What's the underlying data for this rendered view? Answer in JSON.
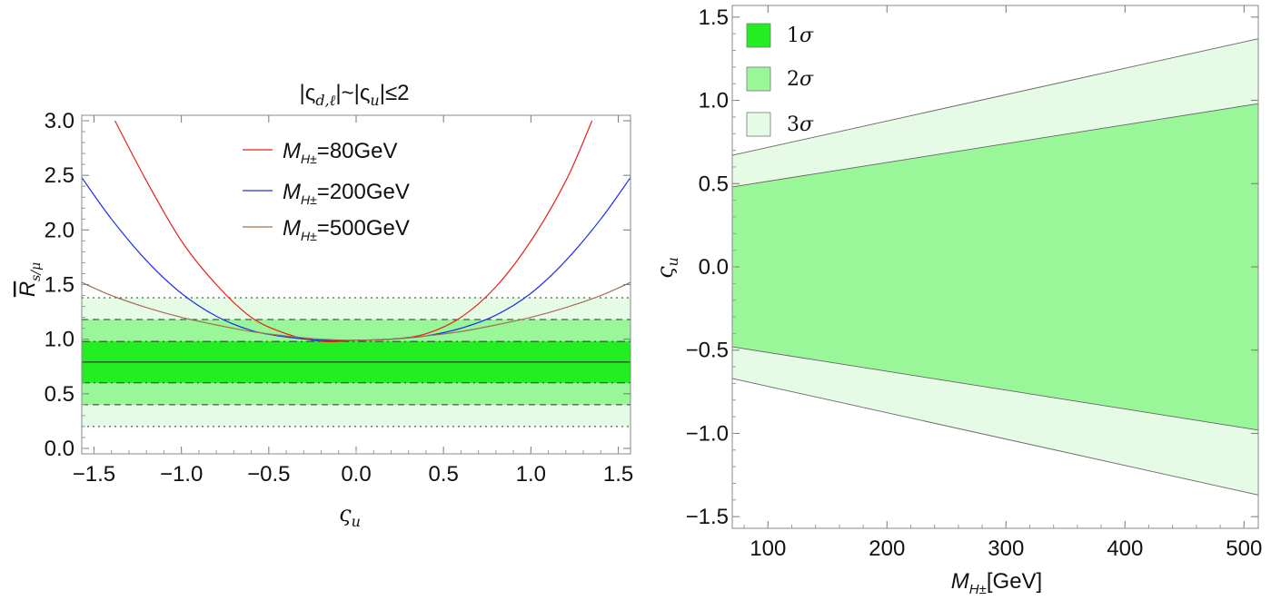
{
  "chart_data": [
    {
      "type": "line",
      "title": "|ς_{d,ℓ}|~|ς_u|≤2",
      "title_parts": {
        "a": "|ς",
        "a_sub": "d,ℓ",
        "b": "|~|ς",
        "b_sub": "u",
        "c": "|≤2"
      },
      "xlabel": "ς_u",
      "xlabel_parts": {
        "main": "ς",
        "sub": "u"
      },
      "ylabel": "R̄_{s/μ}",
      "ylabel_parts": {
        "main": "R",
        "sub": "s/μ"
      },
      "xlim": [
        -1.57,
        1.57
      ],
      "ylim": [
        -0.05,
        3.05
      ],
      "x_ticks": [
        -1.5,
        -1.0,
        -0.5,
        0.0,
        0.5,
        1.0,
        1.5
      ],
      "x_tick_labels": [
        "−1.5",
        "−1.0",
        "−0.5",
        "0.0",
        "0.5",
        "1.0",
        "1.5"
      ],
      "y_ticks": [
        0.0,
        0.5,
        1.0,
        1.5,
        2.0,
        2.5,
        3.0
      ],
      "y_tick_labels": [
        "0.0",
        "0.5",
        "1.0",
        "1.5",
        "2.0",
        "2.5",
        "3.0"
      ],
      "central_value": 0.79,
      "bands": [
        {
          "name": "1σ",
          "low": 0.6,
          "high": 0.98,
          "color": "#22ee22",
          "border": "dashdot"
        },
        {
          "name": "2σ",
          "low": 0.4,
          "high": 1.18,
          "color": "#99f799",
          "border": "dashed"
        },
        {
          "name": "3σ",
          "low": 0.2,
          "high": 1.38,
          "color": "#e6fbe6",
          "border": "dotted"
        }
      ],
      "series": [
        {
          "name": "M_{H±}=80GeV",
          "label_main": "M",
          "label_sub": "H±",
          "label_rest": "=80GeV",
          "color": "#e8201a",
          "x": [
            -1.38,
            -1.2,
            -1.0,
            -0.8,
            -0.6,
            -0.4,
            -0.2,
            0.0,
            0.2,
            0.4,
            0.6,
            0.8,
            1.0,
            1.2,
            1.35
          ],
          "y": [
            3.0,
            2.45,
            1.9,
            1.5,
            1.2,
            1.05,
            0.98,
            0.99,
            1.0,
            1.05,
            1.2,
            1.48,
            1.9,
            2.45,
            3.0
          ]
        },
        {
          "name": "M_{H±}=200GeV",
          "label_main": "M",
          "label_sub": "H±",
          "label_rest": "=200GeV",
          "color": "#1a30e8",
          "x": [
            -1.57,
            -1.4,
            -1.2,
            -1.0,
            -0.8,
            -0.6,
            -0.4,
            -0.2,
            0.0,
            0.2,
            0.4,
            0.6,
            0.8,
            1.0,
            1.2,
            1.4,
            1.57
          ],
          "y": [
            2.48,
            2.1,
            1.72,
            1.42,
            1.21,
            1.08,
            1.02,
            0.99,
            0.99,
            1.0,
            1.03,
            1.1,
            1.22,
            1.42,
            1.72,
            2.1,
            2.48
          ]
        },
        {
          "name": "M_{H±}=500GeV",
          "label_main": "M",
          "label_sub": "H±",
          "label_rest": "=500GeV",
          "color": "#a07050",
          "x": [
            -1.57,
            -1.4,
            -1.2,
            -1.0,
            -0.8,
            -0.6,
            -0.4,
            -0.2,
            0.0,
            0.2,
            0.4,
            0.6,
            0.8,
            1.0,
            1.2,
            1.4,
            1.57
          ],
          "y": [
            1.52,
            1.4,
            1.29,
            1.2,
            1.13,
            1.07,
            1.03,
            1.0,
            0.99,
            1.0,
            1.03,
            1.07,
            1.13,
            1.2,
            1.29,
            1.4,
            1.52
          ]
        }
      ]
    },
    {
      "type": "area",
      "xlabel": "M_{H±}[GeV]",
      "xlabel_parts": {
        "main": "M",
        "sub": "H±",
        "rest": "[GeV]"
      },
      "ylabel": "ς_u",
      "ylabel_parts": {
        "main": "ς",
        "sub": "u"
      },
      "xlim": [
        70,
        512
      ],
      "ylim": [
        -1.57,
        1.57
      ],
      "x_ticks": [
        100,
        200,
        300,
        400,
        500
      ],
      "x_tick_labels": [
        "100",
        "200",
        "300",
        "400",
        "500"
      ],
      "y_ticks": [
        -1.5,
        -1.0,
        -0.5,
        0.0,
        0.5,
        1.0,
        1.5
      ],
      "y_tick_labels": [
        "−1.5",
        "−1.0",
        "−0.5",
        "0.0",
        "0.5",
        "1.0",
        "1.5"
      ],
      "legend": [
        {
          "label": "1σ",
          "main": "1",
          "sym": "σ",
          "color": "#22ee22"
        },
        {
          "label": "2σ",
          "main": "2",
          "sym": "σ",
          "color": "#99f799"
        },
        {
          "label": "3σ",
          "main": "3",
          "sym": "σ",
          "color": "#e6fbe6"
        }
      ],
      "regions": [
        {
          "name": "3σ",
          "color": "#e6fbe6",
          "upper": {
            "x": [
              70,
              512
            ],
            "y": [
              0.67,
              1.37
            ]
          },
          "lower": {
            "x": [
              70,
              512
            ],
            "y": [
              -0.67,
              -1.37
            ]
          }
        },
        {
          "name": "2σ",
          "color": "#99f799",
          "upper": {
            "x": [
              70,
              512
            ],
            "y": [
              0.48,
              0.98
            ]
          },
          "lower": {
            "x": [
              70,
              512
            ],
            "y": [
              -0.48,
              -0.98
            ]
          }
        }
      ]
    }
  ]
}
